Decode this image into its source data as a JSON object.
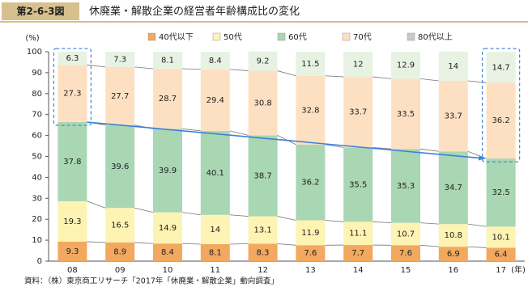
{
  "chart_data": {
    "type": "stacked_bar",
    "figure_label": "第2-6-3図",
    "title": "休廃業・解散企業の経営者年齢構成比の変化",
    "y_label": "(%)",
    "x_unit": "(年)",
    "source": "資料：（株）東京商工リサーチ「2017年「休廃業・解散企業」動向調査」",
    "categories": [
      "08",
      "09",
      "10",
      "11",
      "12",
      "13",
      "14",
      "15",
      "16",
      "17"
    ],
    "series": [
      {
        "name": "40代以下",
        "color": "#f2a85e",
        "values": [
          9.3,
          8.9,
          8.4,
          8.1,
          8.3,
          7.6,
          7.7,
          7.6,
          6.9,
          6.4
        ]
      },
      {
        "name": "50代",
        "color": "#fdf3b2",
        "values": [
          19.3,
          16.5,
          14.9,
          14.0,
          13.1,
          11.9,
          11.1,
          10.7,
          10.8,
          10.1
        ]
      },
      {
        "name": "60代",
        "color": "#a9d6b3",
        "values": [
          37.8,
          39.6,
          39.9,
          40.1,
          38.7,
          36.2,
          35.5,
          35.3,
          34.7,
          32.5
        ]
      },
      {
        "name": "70代",
        "color": "#fde0c2",
        "values": [
          27.3,
          27.7,
          28.7,
          29.4,
          30.8,
          32.8,
          33.7,
          33.5,
          33.7,
          36.2
        ]
      },
      {
        "name": "80代以上",
        "color": "#e8f2e3",
        "values": [
          6.3,
          7.3,
          8.1,
          8.4,
          9.2,
          11.5,
          12.0,
          12.9,
          14.0,
          14.7
        ]
      }
    ],
    "ylim": [
      0,
      100
    ],
    "yticks": [
      0,
      10,
      20,
      30,
      40,
      50,
      60,
      70,
      80,
      90,
      100
    ],
    "grid": false
  }
}
